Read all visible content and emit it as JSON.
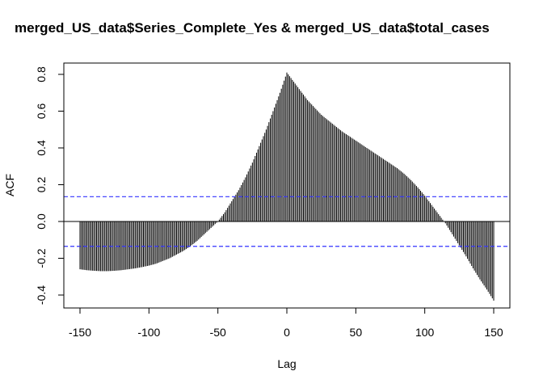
{
  "chart_data": {
    "type": "bar",
    "title": "merged_US_data$Series_Complete_Yes & merged_US_data$total_cases",
    "xlabel": "Lag",
    "ylabel": "ACF",
    "xlim": [
      -150,
      150
    ],
    "ylim": [
      -0.45,
      0.85
    ],
    "x_ticks": [
      -150,
      -100,
      -50,
      0,
      50,
      100,
      150
    ],
    "x_tick_labels": [
      "-150",
      "-100",
      "-50",
      "0",
      "50",
      "100",
      "150"
    ],
    "y_ticks": [
      -0.4,
      -0.2,
      0.0,
      0.2,
      0.4,
      0.6,
      0.8
    ],
    "y_tick_labels": [
      "-0.4",
      "-0.2",
      "0.0",
      "0.2",
      "0.4",
      "0.6",
      "0.8"
    ],
    "confidence_band": 0.135,
    "colors": {
      "bars": "#000000",
      "confidence_lines": "#3333ff",
      "zero_line": "#000000"
    },
    "series": [
      {
        "type": "acf-lollipop",
        "lags": [
          -150,
          -145,
          -140,
          -135,
          -130,
          -125,
          -120,
          -115,
          -110,
          -105,
          -100,
          -95,
          -90,
          -85,
          -80,
          -75,
          -70,
          -65,
          -60,
          -55,
          -50,
          -45,
          -40,
          -35,
          -30,
          -25,
          -20,
          -15,
          -10,
          -5,
          0,
          5,
          10,
          15,
          20,
          25,
          30,
          35,
          40,
          45,
          50,
          55,
          60,
          65,
          70,
          75,
          80,
          85,
          90,
          95,
          100,
          105,
          110,
          115,
          120,
          125,
          130,
          135,
          140,
          145,
          150
        ],
        "values": [
          -0.26,
          -0.265,
          -0.268,
          -0.27,
          -0.27,
          -0.268,
          -0.265,
          -0.26,
          -0.255,
          -0.248,
          -0.24,
          -0.23,
          -0.215,
          -0.2,
          -0.18,
          -0.16,
          -0.135,
          -0.105,
          -0.07,
          -0.035,
          0.0,
          0.05,
          0.11,
          0.17,
          0.24,
          0.32,
          0.41,
          0.5,
          0.6,
          0.7,
          0.81,
          0.76,
          0.71,
          0.66,
          0.62,
          0.58,
          0.55,
          0.52,
          0.49,
          0.465,
          0.44,
          0.415,
          0.39,
          0.365,
          0.34,
          0.315,
          0.29,
          0.26,
          0.225,
          0.185,
          0.14,
          0.09,
          0.04,
          -0.01,
          -0.07,
          -0.13,
          -0.19,
          -0.255,
          -0.315,
          -0.37,
          -0.43
        ]
      }
    ]
  }
}
